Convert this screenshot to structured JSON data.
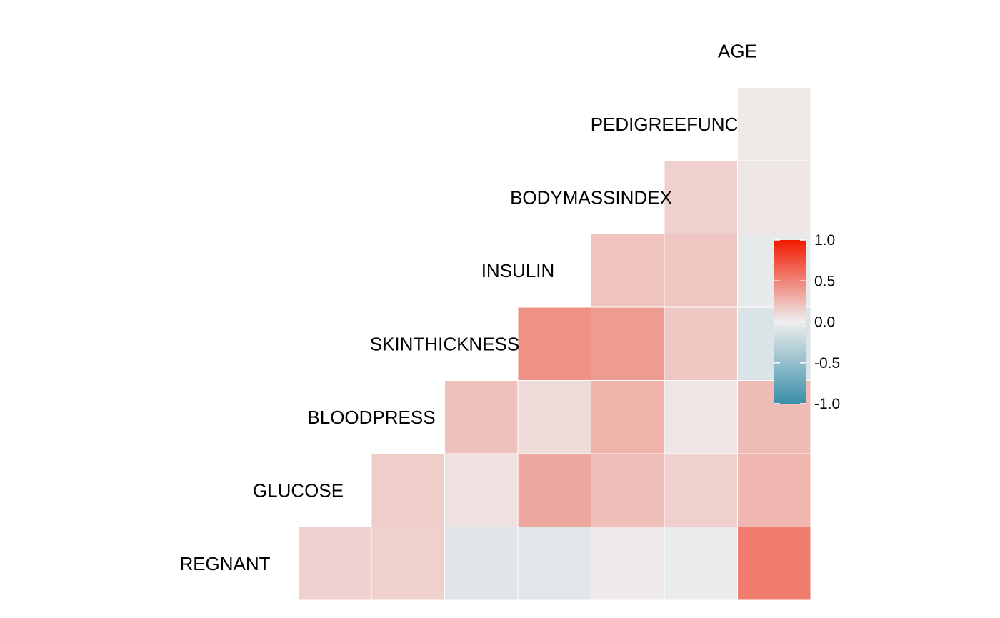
{
  "chart_data": {
    "type": "heatmap",
    "subtype": "correlation-lower-triangle",
    "title": "",
    "variables": [
      "REGNANT",
      "GLUCOSE",
      "BLOODPRESS",
      "SKINTHICKNESS",
      "INSULIN",
      "BODYMASSINDEX",
      "PEDIGREEFUNC",
      "AGE"
    ],
    "correlations": [
      {
        "row": "REGNANT",
        "col": "GLUCOSE",
        "value": 0.13
      },
      {
        "row": "REGNANT",
        "col": "BLOODPRESS",
        "value": 0.14
      },
      {
        "row": "REGNANT",
        "col": "SKINTHICKNESS",
        "value": -0.08
      },
      {
        "row": "REGNANT",
        "col": "INSULIN",
        "value": -0.07
      },
      {
        "row": "REGNANT",
        "col": "BODYMASSINDEX",
        "value": 0.02
      },
      {
        "row": "REGNANT",
        "col": "PEDIGREEFUNC",
        "value": -0.03
      },
      {
        "row": "REGNANT",
        "col": "AGE",
        "value": 0.54
      },
      {
        "row": "GLUCOSE",
        "col": "BLOODPRESS",
        "value": 0.15
      },
      {
        "row": "GLUCOSE",
        "col": "SKINTHICKNESS",
        "value": 0.06
      },
      {
        "row": "GLUCOSE",
        "col": "INSULIN",
        "value": 0.33
      },
      {
        "row": "GLUCOSE",
        "col": "BODYMASSINDEX",
        "value": 0.22
      },
      {
        "row": "GLUCOSE",
        "col": "PEDIGREEFUNC",
        "value": 0.14
      },
      {
        "row": "GLUCOSE",
        "col": "AGE",
        "value": 0.26
      },
      {
        "row": "BLOODPRESS",
        "col": "SKINTHICKNESS",
        "value": 0.21
      },
      {
        "row": "BLOODPRESS",
        "col": "INSULIN",
        "value": 0.09
      },
      {
        "row": "BLOODPRESS",
        "col": "BODYMASSINDEX",
        "value": 0.28
      },
      {
        "row": "BLOODPRESS",
        "col": "PEDIGREEFUNC",
        "value": 0.04
      },
      {
        "row": "BLOODPRESS",
        "col": "AGE",
        "value": 0.24
      },
      {
        "row": "SKINTHICKNESS",
        "col": "INSULIN",
        "value": 0.44
      },
      {
        "row": "SKINTHICKNESS",
        "col": "BODYMASSINDEX",
        "value": 0.39
      },
      {
        "row": "SKINTHICKNESS",
        "col": "PEDIGREEFUNC",
        "value": 0.18
      },
      {
        "row": "SKINTHICKNESS",
        "col": "AGE",
        "value": -0.11
      },
      {
        "row": "INSULIN",
        "col": "BODYMASSINDEX",
        "value": 0.2
      },
      {
        "row": "INSULIN",
        "col": "PEDIGREEFUNC",
        "value": 0.19
      },
      {
        "row": "INSULIN",
        "col": "AGE",
        "value": -0.04
      },
      {
        "row": "BODYMASSINDEX",
        "col": "PEDIGREEFUNC",
        "value": 0.14
      },
      {
        "row": "BODYMASSINDEX",
        "col": "AGE",
        "value": 0.04
      },
      {
        "row": "PEDIGREEFUNC",
        "col": "AGE",
        "value": 0.03
      }
    ],
    "color_scale": {
      "low": "#3A8FA8",
      "mid": "#EEEEEE",
      "high": "#F21A00",
      "domain": [
        -1,
        1
      ]
    },
    "legend": {
      "position": "right",
      "ticks": [
        "1.0",
        "0.5",
        "0.0",
        "-0.5",
        "-1.0"
      ],
      "tick_values": [
        1.0,
        0.5,
        0.0,
        -0.5,
        -1.0
      ]
    },
    "axes_visible": false,
    "grid": false
  }
}
